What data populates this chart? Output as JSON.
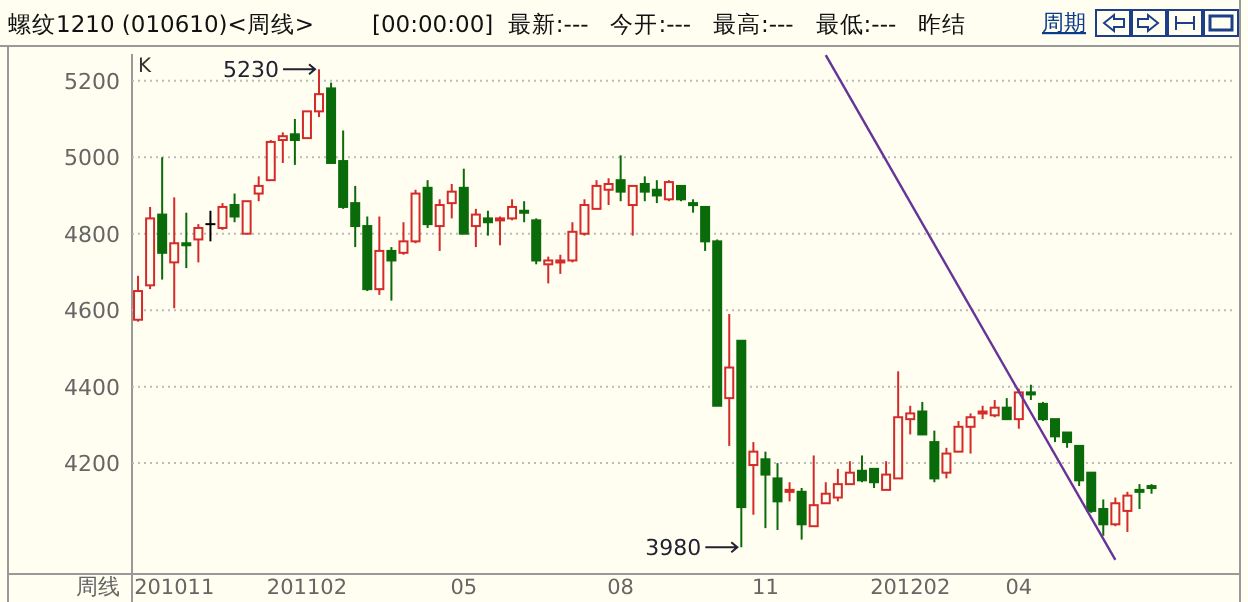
{
  "chart_data": {
    "type": "candlestick",
    "title": "螺纹1210 (010610)<周线>",
    "subtitle": "[00:00:00]  最新:---   今开:---   最高:---   最低:---   昨结",
    "xlabel": "周线",
    "categories": [
      null,
      null,
      null,
      "201011",
      null,
      null,
      null,
      null,
      null,
      null,
      null,
      null,
      null,
      null,
      "201102",
      null,
      null,
      null,
      null,
      null,
      null,
      null,
      null,
      null,
      null,
      null,
      null,
      "05",
      null,
      null,
      null,
      null,
      null,
      null,
      null,
      null,
      null,
      null,
      null,
      null,
      "08",
      null,
      null,
      null,
      null,
      null,
      null,
      null,
      null,
      null,
      null,
      null,
      "11",
      null,
      null,
      null,
      null,
      null,
      null,
      null,
      null,
      null,
      null,
      null,
      "201202",
      null,
      null,
      null,
      null,
      null,
      null,
      null,
      null,
      "04",
      null,
      null,
      null,
      null,
      null,
      null,
      null,
      null,
      null,
      null,
      null
    ],
    "ohlc": [
      [
        4575,
        4690,
        4570,
        4650
      ],
      [
        4665,
        4870,
        4655,
        4840
      ],
      [
        4850,
        5000,
        4680,
        4750
      ],
      [
        4725,
        4895,
        4605,
        4775
      ],
      [
        4775,
        4855,
        4710,
        4770
      ],
      [
        4785,
        4825,
        4725,
        4815
      ],
      [
        4825,
        4860,
        4780,
        4825
      ],
      [
        4815,
        4880,
        4810,
        4870
      ],
      [
        4875,
        4905,
        4830,
        4845
      ],
      [
        4800,
        4885,
        4800,
        4885
      ],
      [
        4905,
        4950,
        4885,
        4925
      ],
      [
        4940,
        5045,
        4940,
        5040
      ],
      [
        5045,
        5065,
        4985,
        5055
      ],
      [
        5060,
        5100,
        4980,
        5045
      ],
      [
        5050,
        5120,
        5050,
        5120
      ],
      [
        5120,
        5230,
        5105,
        5165
      ],
      [
        5180,
        5195,
        4985,
        4985
      ],
      [
        4990,
        5070,
        4865,
        4870
      ],
      [
        4880,
        4925,
        4765,
        4820
      ],
      [
        4820,
        4845,
        4650,
        4655
      ],
      [
        4655,
        4845,
        4640,
        4755
      ],
      [
        4755,
        4765,
        4625,
        4730
      ],
      [
        4750,
        4830,
        4745,
        4780
      ],
      [
        4780,
        4915,
        4775,
        4905
      ],
      [
        4920,
        4940,
        4815,
        4825
      ],
      [
        4820,
        4890,
        4755,
        4875
      ],
      [
        4880,
        4930,
        4840,
        4910
      ],
      [
        4920,
        4970,
        4800,
        4800
      ],
      [
        4820,
        4865,
        4765,
        4850
      ],
      [
        4840,
        4860,
        4795,
        4830
      ],
      [
        4835,
        4845,
        4770,
        4840
      ],
      [
        4840,
        4890,
        4835,
        4870
      ],
      [
        4860,
        4885,
        4830,
        4855
      ],
      [
        4835,
        4840,
        4720,
        4730
      ],
      [
        4720,
        4740,
        4670,
        4730
      ],
      [
        4725,
        4745,
        4695,
        4730
      ],
      [
        4730,
        4830,
        4725,
        4805
      ],
      [
        4800,
        4890,
        4795,
        4875
      ],
      [
        4865,
        4940,
        4865,
        4925
      ],
      [
        4915,
        4945,
        4875,
        4930
      ],
      [
        4940,
        5005,
        4885,
        4910
      ],
      [
        4875,
        4925,
        4795,
        4925
      ],
      [
        4930,
        4950,
        4885,
        4910
      ],
      [
        4915,
        4940,
        4880,
        4900
      ],
      [
        4890,
        4940,
        4885,
        4935
      ],
      [
        4925,
        4925,
        4885,
        4890
      ],
      [
        4880,
        4890,
        4855,
        4875
      ],
      [
        4870,
        4870,
        4755,
        4780
      ],
      [
        4780,
        4785,
        4350,
        4350
      ],
      [
        4370,
        4590,
        4245,
        4450
      ],
      [
        4520,
        4520,
        3980,
        4085
      ],
      [
        4195,
        4255,
        4065,
        4230
      ],
      [
        4210,
        4230,
        4030,
        4170
      ],
      [
        4160,
        4200,
        4025,
        4100
      ],
      [
        4125,
        4150,
        4100,
        4130
      ],
      [
        4125,
        4135,
        4000,
        4040
      ],
      [
        4035,
        4220,
        4035,
        4090
      ],
      [
        4095,
        4150,
        4095,
        4120
      ],
      [
        4110,
        4185,
        4100,
        4145
      ],
      [
        4145,
        4205,
        4145,
        4175
      ],
      [
        4180,
        4220,
        4150,
        4155
      ],
      [
        4185,
        4185,
        4135,
        4150
      ],
      [
        4130,
        4205,
        4130,
        4170
      ],
      [
        4160,
        4440,
        4160,
        4320
      ],
      [
        4315,
        4350,
        4275,
        4330
      ],
      [
        4335,
        4360,
        4275,
        4275
      ],
      [
        4255,
        4285,
        4150,
        4160
      ],
      [
        4175,
        4240,
        4160,
        4225
      ],
      [
        4230,
        4310,
        4230,
        4295
      ],
      [
        4295,
        4330,
        4225,
        4320
      ],
      [
        4330,
        4350,
        4315,
        4335
      ],
      [
        4325,
        4365,
        4320,
        4345
      ],
      [
        4345,
        4370,
        4315,
        4315
      ],
      [
        4315,
        4395,
        4290,
        4385
      ],
      [
        4385,
        4405,
        4365,
        4380
      ],
      [
        4355,
        4360,
        4310,
        4315
      ],
      [
        4315,
        4315,
        4255,
        4270
      ],
      [
        4280,
        4280,
        4240,
        4255
      ],
      [
        4245,
        4245,
        4140,
        4155
      ],
      [
        4175,
        4175,
        4070,
        4075
      ],
      [
        4080,
        4105,
        4010,
        4040
      ],
      [
        4040,
        4110,
        4035,
        4095
      ],
      [
        4075,
        4125,
        4020,
        4115
      ],
      [
        4130,
        4145,
        4080,
        4125
      ],
      [
        4140,
        4145,
        4120,
        4135
      ]
    ],
    "series": [
      {
        "type": "line",
        "color": "#663399",
        "values": [
          null,
          null,
          null,
          null,
          null,
          null,
          null,
          null,
          null,
          null,
          null,
          null,
          null,
          null,
          null,
          null,
          null,
          null,
          null,
          null,
          null,
          null,
          null,
          null,
          null,
          null,
          null,
          null,
          null,
          null,
          null,
          null,
          null,
          null,
          null,
          null,
          null,
          null,
          null,
          null,
          null,
          null,
          null,
          null,
          null,
          null,
          null,
          null,
          null,
          null,
          null,
          null,
          null,
          null,
          null,
          null,
          null,
          5267,
          null,
          null,
          null,
          null,
          null,
          null,
          null,
          null,
          null,
          null,
          null,
          null,
          null,
          null,
          null,
          null,
          null,
          null,
          null,
          null,
          null,
          null,
          null,
          3947,
          null,
          null,
          null
        ]
      }
    ],
    "ylim": [
      3910,
      5270
    ],
    "yticks": [
      4200,
      4400,
      4600,
      4800,
      5000,
      5200
    ],
    "grid": "y",
    "annotations": [
      "K",
      "5230",
      "3980",
      "周期"
    ]
  }
}
